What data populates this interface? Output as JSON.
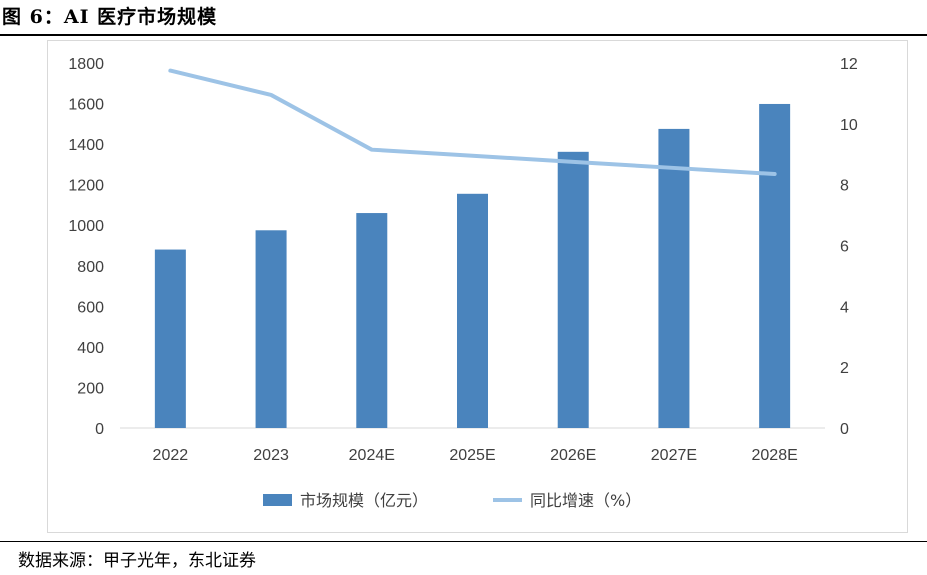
{
  "title": "图 6：AI 医疗市场规模",
  "source": "数据来源：甲子光年，东北证券",
  "chart_data": {
    "type": "bar",
    "categories": [
      "2022",
      "2023",
      "2024E",
      "2025E",
      "2026E",
      "2027E",
      "2028E"
    ],
    "series": [
      {
        "name": "市场规模（亿元）",
        "type": "bar",
        "axis": "left",
        "values": [
          880,
          975,
          1060,
          1155,
          1362,
          1475,
          1598
        ],
        "color": "#4a84bd"
      },
      {
        "name": "同比增速（%）",
        "type": "line",
        "axis": "right",
        "values": [
          11.75,
          10.95,
          9.15,
          8.95,
          8.75,
          8.55,
          8.35
        ],
        "color": "#9dc3e6"
      }
    ],
    "y_left": {
      "ticks": [
        "0",
        "200",
        "400",
        "600",
        "800",
        "1000",
        "1200",
        "1400",
        "1600",
        "1800"
      ],
      "lim": [
        0,
        1800
      ]
    },
    "y_right": {
      "ticks": [
        "0",
        "2",
        "4",
        "6",
        "8",
        "10",
        "12"
      ],
      "lim": [
        0,
        12
      ]
    },
    "grid": false,
    "legend_position": "bottom"
  }
}
